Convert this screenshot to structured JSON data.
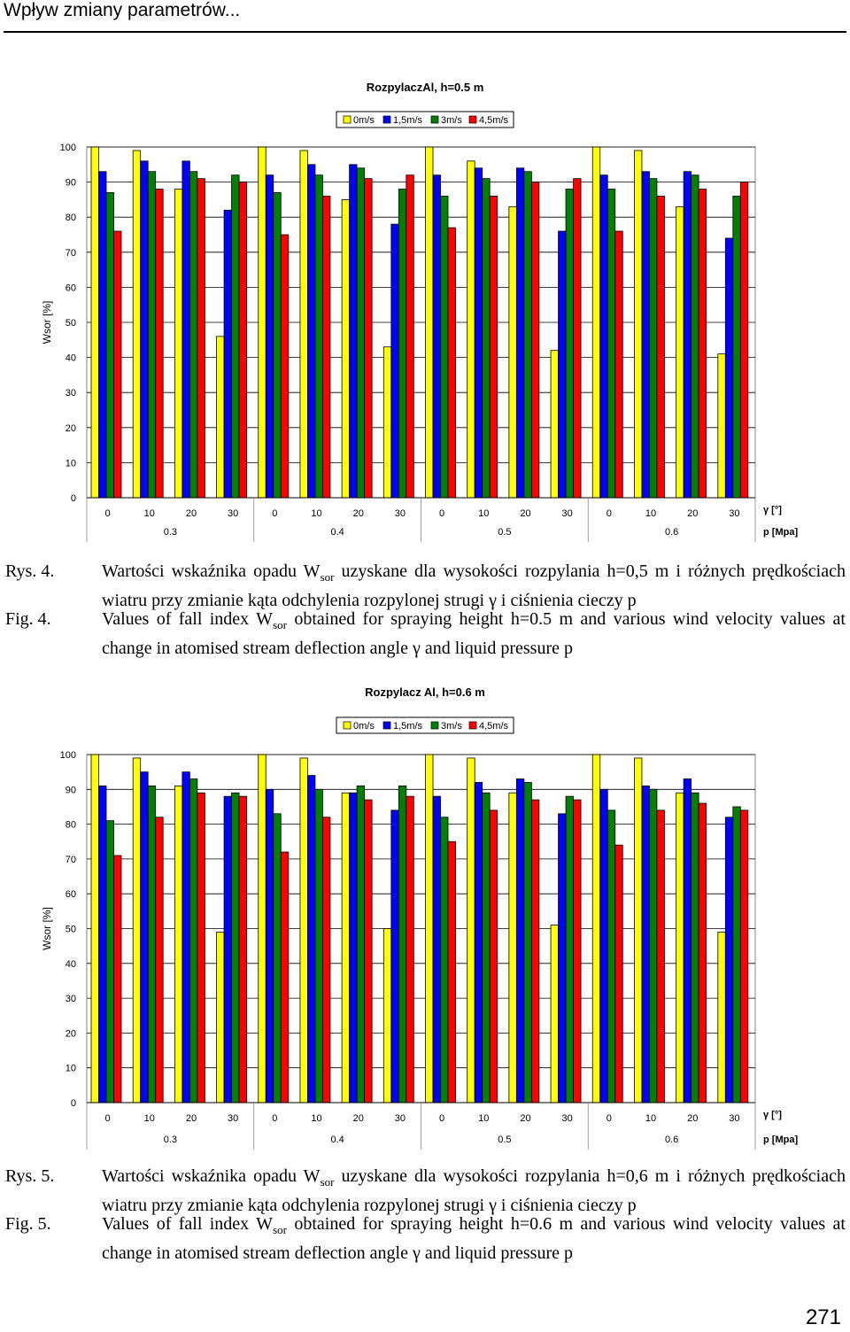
{
  "header": {
    "title": "Wpływ zmiany parametrów..."
  },
  "colors": {
    "0m/s": "#ffff00",
    "1,5m/s": "#0000ff",
    "3m/s": "#008000",
    "4,5m/s": "#ff0000"
  },
  "chart_data": [
    {
      "type": "bar",
      "title": "RozpylaczAl, h=0.5 m",
      "ylabel": "Wsor [%]",
      "xlabel_gamma": "γ [°]",
      "xlabel_p": "p [Mpa]",
      "ylim": [
        0,
        100
      ],
      "yticks": [
        "0",
        "10",
        "20",
        "30",
        "40",
        "50",
        "60",
        "70",
        "80",
        "90",
        "100"
      ],
      "gamma_labels": [
        "0",
        "10",
        "20",
        "30"
      ],
      "pressure_groups": [
        "0.3",
        "0.4",
        "0.5",
        "0.6"
      ],
      "legend_position": "top",
      "grid": true,
      "series": [
        {
          "name": "0m/s",
          "values": [
            100,
            99,
            88,
            46,
            100,
            99,
            85,
            43,
            100,
            96,
            83,
            42,
            100,
            99,
            83,
            41
          ]
        },
        {
          "name": "1,5m/s",
          "values": [
            93,
            96,
            96,
            82,
            92,
            95,
            95,
            78,
            92,
            94,
            94,
            76,
            92,
            93,
            93,
            74
          ]
        },
        {
          "name": "3m/s",
          "values": [
            87,
            93,
            93,
            92,
            87,
            92,
            94,
            88,
            86,
            91,
            93,
            88,
            88,
            91,
            92,
            86
          ]
        },
        {
          "name": "4,5m/s",
          "values": [
            76,
            88,
            91,
            90,
            75,
            86,
            91,
            92,
            77,
            86,
            90,
            91,
            76,
            86,
            88,
            90
          ]
        }
      ]
    },
    {
      "type": "bar",
      "title": "Rozpylacz Al, h=0.6 m",
      "ylabel": "Wsor [%]",
      "xlabel_gamma": "γ [°]",
      "xlabel_p": "p [Mpa]",
      "ylim": [
        0,
        100
      ],
      "yticks": [
        "0",
        "10",
        "20",
        "30",
        "40",
        "50",
        "60",
        "70",
        "80",
        "90",
        "100"
      ],
      "gamma_labels": [
        "0",
        "10",
        "20",
        "30"
      ],
      "pressure_groups": [
        "0.3",
        "0.4",
        "0.5",
        "0.6"
      ],
      "legend_position": "top",
      "grid": true,
      "series": [
        {
          "name": "0m/s",
          "values": [
            100,
            99,
            91,
            49,
            100,
            99,
            89,
            50,
            100,
            99,
            89,
            51,
            100,
            99,
            89,
            49
          ]
        },
        {
          "name": "1,5m/s",
          "values": [
            91,
            95,
            95,
            88,
            90,
            94,
            89,
            84,
            88,
            92,
            93,
            83,
            90,
            91,
            93,
            82
          ]
        },
        {
          "name": "3m/s",
          "values": [
            81,
            91,
            93,
            89,
            83,
            90,
            91,
            91,
            82,
            89,
            92,
            88,
            84,
            90,
            89,
            85
          ]
        },
        {
          "name": "4,5m/s",
          "values": [
            71,
            82,
            89,
            88,
            72,
            82,
            87,
            88,
            75,
            84,
            87,
            87,
            74,
            84,
            86,
            84
          ]
        }
      ]
    }
  ],
  "captions": [
    {
      "rys_label": "Rys. 4.",
      "fig_label": "Fig. 4.",
      "pl_a": "Wartości wskaźnika opadu W",
      "pl_sub": "sor",
      "pl_b": " uzyskane dla wysokości rozpylania h=0,5 m i różnych prędkościach wiatru przy zmianie kąta odchylenia rozpylonej strugi γ i ciśnienia cieczy p",
      "en_a": "Values of fall index W",
      "en_sub": "sor",
      "en_b": " obtained for spraying height h=0.5 m and various wind velocity values at change in atomised stream deflection angle γ and liquid pressure p"
    },
    {
      "rys_label": "Rys. 5.",
      "fig_label": "Fig. 5.",
      "pl_a": "Wartości wskaźnika opadu W",
      "pl_sub": "sor",
      "pl_b": " uzyskane dla wysokości rozpylania h=0,6 m i różnych prędkościach wiatru przy zmianie kąta odchylenia rozpylonej strugi γ i ciśnienia cieczy p",
      "en_a": "Values of fall index W",
      "en_sub": "sor",
      "en_b": " obtained for spraying height h=0.6 m and various wind velocity values at change in atomised stream deflection angle γ and liquid pressure p"
    }
  ],
  "page_number": "271"
}
